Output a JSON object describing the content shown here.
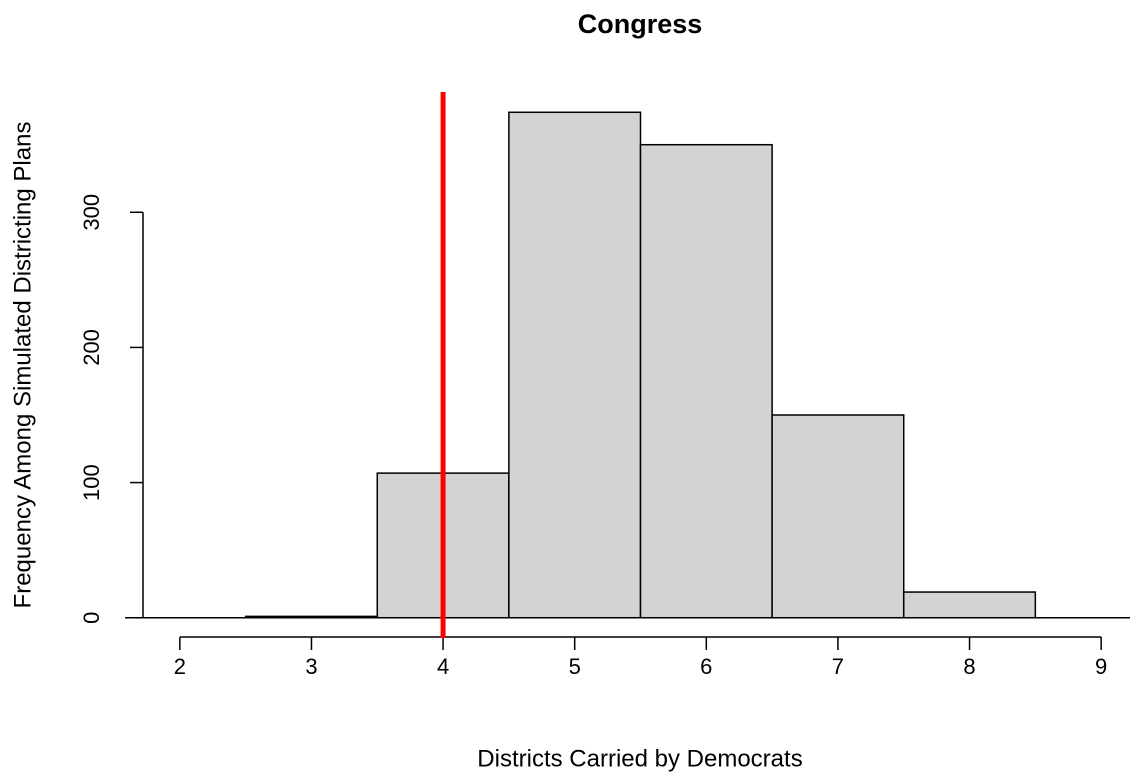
{
  "chart_data": {
    "type": "histogram",
    "title": "Congress",
    "x_label": "Districts Carried by Democrats",
    "y_label": "Frequency Among Simulated Districting Plans",
    "bins": [
      2.5,
      3.5,
      4.5,
      5.5,
      6.5,
      7.5,
      8.5
    ],
    "values": [
      1,
      107,
      374,
      350,
      150,
      19
    ],
    "color": "#d3d3d3",
    "xlim": [
      1.72,
      9.28
    ],
    "ylim": [
      -15,
      389
    ],
    "xticks": [
      2,
      3,
      4,
      5,
      6,
      7,
      8,
      9
    ],
    "yticks": [
      0,
      100,
      200,
      300
    ],
    "reference_line": {
      "x": 4,
      "color": "#ff0000"
    },
    "baseline": 0
  }
}
